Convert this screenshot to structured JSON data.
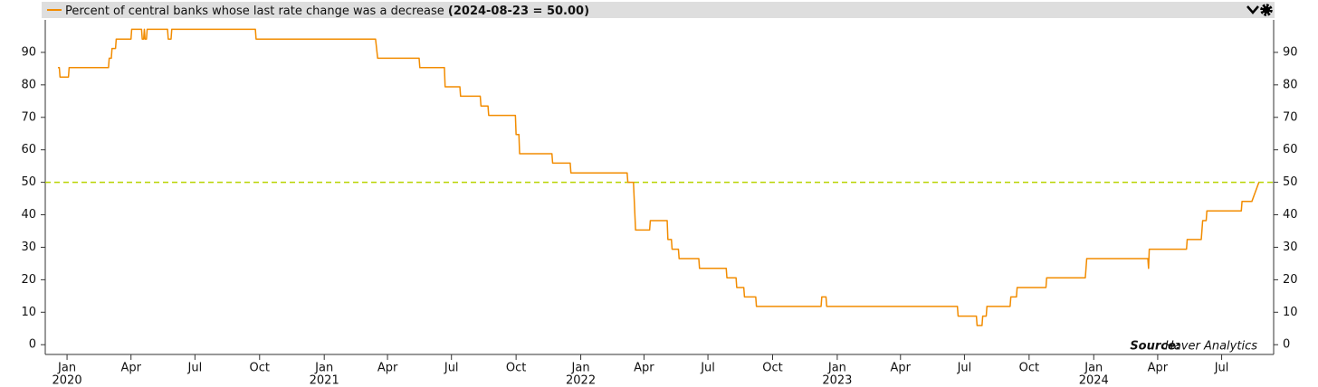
{
  "chart_data": {
    "type": "line",
    "header_value": "(2024-08-23 = 50.00)",
    "source_label": "Source:",
    "source": "Haver Analytics",
    "x": [
      "2019-12-19",
      "2019-12-21",
      "2019-12-22",
      "2020-01-03",
      "2020-01-04",
      "2020-02-29",
      "2020-03-01",
      "2020-03-04",
      "2020-03-05",
      "2020-03-10",
      "2020-03-11",
      "2020-04-01",
      "2020-04-02",
      "2020-04-16",
      "2020-04-17",
      "2020-04-19",
      "2020-04-20",
      "2020-04-21",
      "2020-04-23",
      "2020-04-24",
      "2020-05-23",
      "2020-05-24",
      "2020-05-28",
      "2020-05-29",
      "2020-09-25",
      "2020-09-26",
      "2021-03-15",
      "2021-03-18",
      "2021-05-16",
      "2021-05-17",
      "2021-06-21",
      "2021-06-22",
      "2021-07-13",
      "2021-07-14",
      "2021-08-11",
      "2021-08-12",
      "2021-08-22",
      "2021-08-23",
      "2021-09-30",
      "2021-10-01",
      "2021-10-05",
      "2021-10-06",
      "2021-11-21",
      "2021-11-22",
      "2021-12-17",
      "2021-12-18",
      "2022-03-08",
      "2022-03-09",
      "2022-03-17",
      "2022-03-20",
      "2022-04-09",
      "2022-04-10",
      "2022-05-04",
      "2022-05-05",
      "2022-05-10",
      "2022-05-11",
      "2022-05-20",
      "2022-05-21",
      "2022-06-18",
      "2022-06-19",
      "2022-07-27",
      "2022-07-28",
      "2022-08-10",
      "2022-08-11",
      "2022-08-21",
      "2022-08-22",
      "2022-09-07",
      "2022-09-08",
      "2022-12-09",
      "2022-12-10",
      "2022-12-16",
      "2022-12-17",
      "2023-06-21",
      "2023-06-22",
      "2023-07-18",
      "2023-07-19",
      "2023-07-26",
      "2023-07-27",
      "2023-08-01",
      "2023-08-02",
      "2023-09-04",
      "2023-09-05",
      "2023-09-13",
      "2023-09-14",
      "2023-10-25",
      "2023-10-26",
      "2023-12-20",
      "2023-12-21",
      "2023-12-22",
      "2024-03-18",
      "2024-03-19",
      "2024-03-20",
      "2024-05-12",
      "2024-05-13",
      "2024-06-02",
      "2024-06-03",
      "2024-06-04",
      "2024-06-09",
      "2024-06-10",
      "2024-07-29",
      "2024-07-30",
      "2024-08-13",
      "2024-08-23"
    ],
    "series": [
      {
        "name": "Percent of central banks whose last rate change was a decrease",
        "color": "#f28c00",
        "values": [
          85.3,
          85.3,
          82.4,
          82.4,
          85.3,
          85.3,
          88.2,
          88.2,
          91.2,
          91.2,
          94.1,
          94.1,
          97.1,
          97.1,
          94.1,
          94.1,
          97.1,
          94.1,
          94.1,
          97.1,
          97.1,
          94.1,
          94.1,
          97.1,
          97.1,
          94.1,
          94.1,
          88.2,
          88.2,
          85.3,
          85.3,
          79.4,
          79.4,
          76.5,
          76.5,
          73.5,
          73.5,
          70.6,
          70.6,
          64.7,
          64.7,
          58.8,
          58.8,
          55.9,
          55.9,
          52.9,
          52.9,
          50,
          50,
          35.3,
          35.3,
          38.2,
          38.2,
          32.4,
          32.4,
          29.4,
          29.4,
          26.5,
          26.5,
          23.5,
          23.5,
          20.6,
          20.6,
          17.6,
          17.6,
          14.7,
          14.7,
          11.8,
          11.8,
          14.7,
          14.7,
          11.8,
          11.8,
          8.8,
          8.8,
          5.9,
          5.9,
          8.8,
          8.8,
          11.8,
          11.8,
          14.7,
          14.7,
          17.6,
          17.6,
          20.6,
          20.6,
          23.5,
          26.5,
          26.5,
          23.5,
          29.4,
          29.4,
          32.4,
          32.4,
          35.3,
          38.2,
          38.2,
          41.2,
          41.2,
          44.1,
          44.1,
          50
        ]
      }
    ],
    "reference_line": {
      "value": 50,
      "color": "#b8d400"
    },
    "xlim": [
      "2019-12-01",
      "2024-09-13"
    ],
    "xticks": [
      {
        "value": "2020-01-01",
        "label": "Jan"
      },
      {
        "value": "2020-04-01",
        "label": "Apr"
      },
      {
        "value": "2020-07-01",
        "label": "Jul"
      },
      {
        "value": "2020-10-01",
        "label": "Oct"
      },
      {
        "value": "2021-01-01",
        "label": "Jan"
      },
      {
        "value": "2021-04-01",
        "label": "Apr"
      },
      {
        "value": "2021-07-01",
        "label": "Jul"
      },
      {
        "value": "2021-10-01",
        "label": "Oct"
      },
      {
        "value": "2022-01-01",
        "label": "Jan"
      },
      {
        "value": "2022-04-01",
        "label": "Apr"
      },
      {
        "value": "2022-07-01",
        "label": "Jul"
      },
      {
        "value": "2022-10-01",
        "label": "Oct"
      },
      {
        "value": "2023-01-01",
        "label": "Jan"
      },
      {
        "value": "2023-04-01",
        "label": "Apr"
      },
      {
        "value": "2023-07-01",
        "label": "Jul"
      },
      {
        "value": "2023-10-01",
        "label": "Oct"
      },
      {
        "value": "2024-01-01",
        "label": "Jan"
      },
      {
        "value": "2024-04-01",
        "label": "Apr"
      },
      {
        "value": "2024-07-01",
        "label": "Jul"
      }
    ],
    "xyears": [
      {
        "value": "2020-01-01",
        "label": "2020"
      },
      {
        "value": "2021-01-01",
        "label": "2021"
      },
      {
        "value": "2022-01-01",
        "label": "2022"
      },
      {
        "value": "2023-01-01",
        "label": "2023"
      },
      {
        "value": "2024-01-01",
        "label": "2024"
      }
    ],
    "ylim": [
      -3,
      100
    ],
    "yticks": [
      0,
      10,
      20,
      30,
      40,
      50,
      60,
      70,
      80,
      90
    ],
    "y2lim": [
      -3,
      100
    ],
    "y2ticks": [
      0,
      10,
      20,
      30,
      40,
      50,
      60,
      70,
      80,
      90
    ],
    "grid": false
  }
}
